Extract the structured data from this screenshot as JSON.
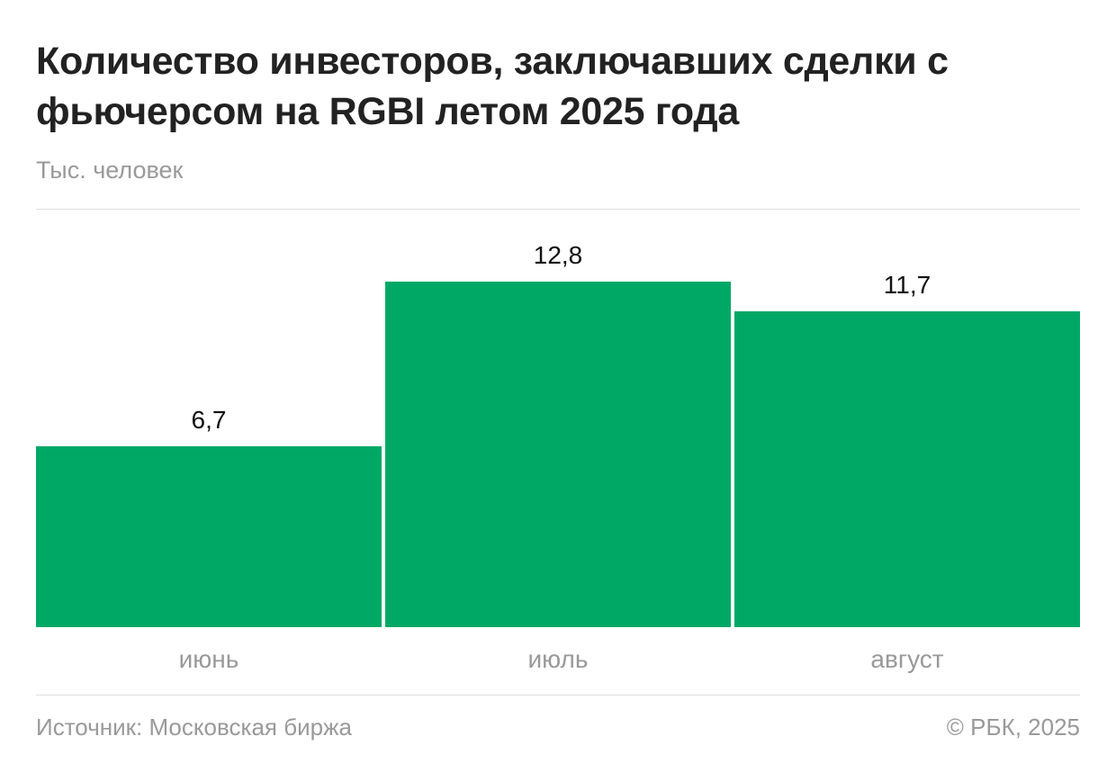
{
  "chart_data": {
    "type": "bar",
    "title": "Количество инвесторов, заключавших сделки с фьючерсом на RGBI летом 2025 года",
    "subtitle": "Тыс. человек",
    "categories": [
      "июнь",
      "июль",
      "август"
    ],
    "values": [
      6.7,
      12.8,
      11.7
    ],
    "value_labels": [
      "6,7",
      "12,8",
      "11,7"
    ],
    "ylim": [
      0,
      15.5
    ],
    "grid": false,
    "bar_color": "#00a866"
  },
  "footer": {
    "source": "Источник: Московская биржа",
    "copyright": "© РБК, 2025"
  }
}
